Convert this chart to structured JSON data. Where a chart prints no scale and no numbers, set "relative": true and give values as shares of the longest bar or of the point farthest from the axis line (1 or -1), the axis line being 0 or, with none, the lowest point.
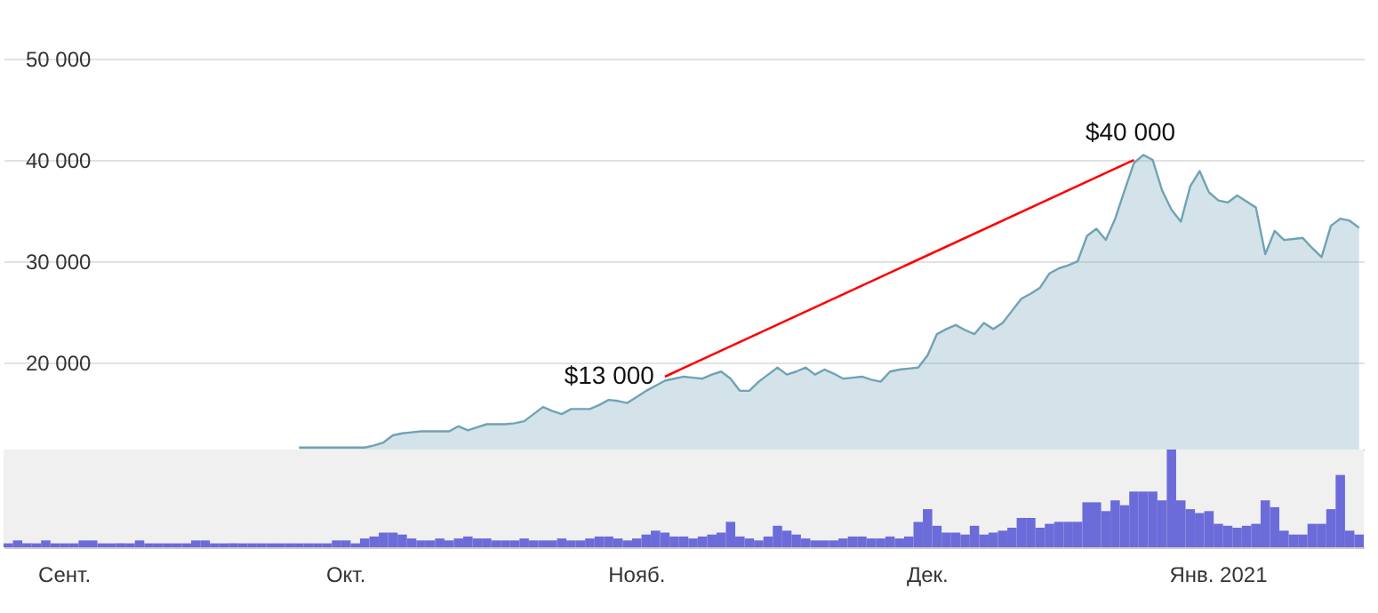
{
  "chart_data": [
    {
      "type": "area",
      "ylim": [
        11400,
        55800
      ],
      "categories": [
        null,
        null,
        null,
        null,
        null,
        null,
        null,
        null,
        null,
        null,
        null,
        null,
        null,
        null,
        null,
        null,
        null,
        null,
        null,
        null,
        null,
        null,
        null,
        null,
        null,
        null,
        null,
        null,
        null,
        null,
        null,
        null,
        null,
        null,
        null,
        null,
        null,
        null,
        null,
        null,
        null,
        null,
        null,
        null,
        null,
        null,
        null,
        null,
        null,
        null,
        null,
        null,
        null,
        null,
        null,
        null,
        null,
        null,
        null,
        null,
        null,
        null,
        null,
        null,
        null,
        null,
        null,
        null,
        null,
        null,
        null,
        null,
        null,
        null,
        null,
        null,
        null,
        null,
        null,
        null,
        null,
        null,
        null,
        null,
        null,
        null,
        null,
        null,
        null,
        null,
        null,
        null,
        null,
        null,
        null,
        null,
        null,
        null,
        null,
        null,
        null,
        null,
        null,
        null,
        null,
        null,
        null,
        null,
        null,
        null,
        null,
        null,
        null,
        null,
        null,
        null,
        null,
        null,
        null,
        null,
        null,
        null,
        null,
        null,
        null,
        null,
        null,
        null,
        null,
        null,
        null,
        null,
        null,
        null,
        null,
        null,
        null,
        null,
        null,
        null,
        null,
        null,
        null,
        null,
        null
      ],
      "yticks": [
        {
          "value": 20000,
          "label": "20 000"
        },
        {
          "value": 30000,
          "label": "30 000"
        },
        {
          "value": 40000,
          "label": "40 000"
        },
        {
          "value": 50000,
          "label": "50 000"
        }
      ],
      "grid": "y",
      "tick_labels": "y",
      "marker": "none",
      "series": [
        {
          "color": "#6fa3b5",
          "values": [
            null,
            null,
            null,
            null,
            null,
            null,
            null,
            null,
            null,
            null,
            null,
            null,
            null,
            null,
            null,
            null,
            null,
            null,
            null,
            null,
            null,
            null,
            null,
            null,
            null,
            null,
            null,
            null,
            null,
            null,
            null,
            11600,
            11600,
            11600,
            11600,
            11600,
            11600,
            11600,
            11600,
            11800,
            12100,
            12800,
            13000,
            13100,
            13200,
            13200,
            13200,
            13200,
            13700,
            13300,
            13600,
            13900,
            13900,
            13900,
            14000,
            14200,
            14900,
            15600,
            15200,
            14900,
            15400,
            15400,
            15400,
            15800,
            16300,
            16200,
            16000,
            16600,
            17200,
            17700,
            18200,
            18400,
            18600,
            18500,
            18400,
            18800,
            19100,
            18400,
            17200,
            17200,
            18100,
            18800,
            19500,
            18800,
            19100,
            19500,
            18800,
            19300,
            18900,
            18400,
            18500,
            18600,
            18300,
            18100,
            19100,
            19300,
            19400,
            19500,
            20700,
            22800,
            23300,
            23700,
            23200,
            22800,
            23900,
            23300,
            23900,
            25100,
            26300,
            26800,
            27400,
            28800,
            29300,
            29600,
            30000,
            32500,
            33200,
            32100,
            34200,
            37000,
            39700,
            40500,
            40000,
            37000,
            35100,
            33900,
            37400,
            38900,
            36800,
            36000,
            35800,
            36500,
            35900,
            35300,
            30700,
            33000,
            32100,
            32200,
            32300,
            31300,
            30400,
            33500,
            34200,
            34000,
            33300
          ]
        },
        {
          "type": "line",
          "color": "#ff0000",
          "values": [
            null,
            null,
            null,
            null,
            null,
            null,
            null,
            null,
            null,
            null,
            null,
            null,
            null,
            null,
            null,
            null,
            null,
            null,
            null,
            null,
            null,
            null,
            null,
            null,
            null,
            null,
            null,
            null,
            null,
            null,
            null,
            null,
            null,
            null,
            null,
            null,
            null,
            null,
            null,
            null,
            null,
            null,
            null,
            null,
            null,
            null,
            null,
            null,
            null,
            null,
            null,
            null,
            null,
            null,
            null,
            null,
            null,
            null,
            null,
            null,
            null,
            null,
            null,
            null,
            null,
            null,
            null,
            null,
            null,
            null,
            18600,
            null,
            null,
            null,
            null,
            null,
            null,
            null,
            null,
            null,
            null,
            null,
            null,
            null,
            null,
            null,
            null,
            null,
            null,
            null,
            null,
            null,
            null,
            null,
            null,
            null,
            null,
            null,
            null,
            null,
            null,
            null,
            null,
            null,
            null,
            null,
            null,
            null,
            null,
            null,
            null,
            null,
            null,
            null,
            null,
            null,
            null,
            null,
            null,
            null,
            40000,
            null,
            null,
            null,
            null,
            null,
            null,
            null,
            null,
            null,
            null,
            null,
            null,
            null,
            null,
            null,
            null,
            null,
            null,
            null,
            null,
            null,
            null,
            null,
            null
          ]
        }
      ],
      "annotations": [
        "$13 000",
        "$40 000"
      ]
    },
    {
      "type": "bar",
      "relative": true,
      "tick_labels": "x",
      "categories": [
        null,
        null,
        null,
        null,
        null,
        null,
        "Сент.",
        null,
        null,
        null,
        null,
        null,
        null,
        null,
        null,
        null,
        null,
        null,
        null,
        null,
        null,
        null,
        null,
        null,
        null,
        null,
        null,
        null,
        null,
        null,
        null,
        null,
        null,
        null,
        null,
        null,
        "Окт.",
        null,
        null,
        null,
        null,
        null,
        null,
        null,
        null,
        null,
        null,
        null,
        null,
        null,
        null,
        null,
        null,
        null,
        null,
        null,
        null,
        null,
        null,
        null,
        null,
        null,
        null,
        null,
        null,
        null,
        null,
        "Нояб.",
        null,
        null,
        null,
        null,
        null,
        null,
        null,
        null,
        null,
        null,
        null,
        null,
        null,
        null,
        null,
        null,
        null,
        null,
        null,
        null,
        null,
        null,
        null,
        null,
        null,
        null,
        null,
        null,
        null,
        null,
        "Дек.",
        null,
        null,
        null,
        null,
        null,
        null,
        null,
        null,
        null,
        null,
        null,
        null,
        null,
        null,
        null,
        null,
        null,
        null,
        null,
        null,
        null,
        null,
        null,
        null,
        null,
        null,
        null,
        null,
        null,
        null,
        "Янв. 2021",
        null,
        null,
        null,
        null,
        null,
        null,
        null,
        null,
        null,
        null,
        null,
        null,
        null,
        null,
        null
      ],
      "series": [
        {
          "color": "#6b6bd9",
          "values": [
            0.04,
            0.07,
            0.04,
            0.04,
            0.07,
            0.04,
            0.04,
            0.04,
            0.07,
            0.07,
            0.04,
            0.04,
            0.04,
            0.04,
            0.07,
            0.04,
            0.04,
            0.04,
            0.04,
            0.04,
            0.07,
            0.07,
            0.04,
            0.04,
            0.04,
            0.04,
            0.04,
            0.04,
            0.04,
            0.04,
            0.04,
            0.04,
            0.04,
            0.04,
            0.04,
            0.07,
            0.07,
            0.04,
            0.09,
            0.11,
            0.15,
            0.15,
            0.13,
            0.09,
            0.07,
            0.07,
            0.09,
            0.07,
            0.09,
            0.11,
            0.09,
            0.09,
            0.07,
            0.07,
            0.07,
            0.09,
            0.07,
            0.07,
            0.07,
            0.09,
            0.07,
            0.07,
            0.09,
            0.11,
            0.11,
            0.09,
            0.07,
            0.09,
            0.13,
            0.17,
            0.15,
            0.11,
            0.11,
            0.09,
            0.11,
            0.13,
            0.15,
            0.26,
            0.11,
            0.09,
            0.07,
            0.11,
            0.22,
            0.17,
            0.13,
            0.09,
            0.07,
            0.07,
            0.07,
            0.09,
            0.11,
            0.11,
            0.09,
            0.09,
            0.11,
            0.09,
            0.11,
            0.26,
            0.39,
            0.22,
            0.15,
            0.15,
            0.13,
            0.22,
            0.13,
            0.15,
            0.17,
            0.2,
            0.3,
            0.3,
            0.2,
            0.24,
            0.26,
            0.26,
            0.26,
            0.46,
            0.46,
            0.37,
            0.48,
            0.43,
            0.57,
            0.57,
            0.57,
            0.48,
            1,
            0.48,
            0.39,
            0.35,
            0.37,
            0.24,
            0.22,
            0.2,
            0.22,
            0.24,
            0.48,
            0.41,
            0.17,
            0.13,
            0.13,
            0.24,
            0.24,
            0.39,
            0.74,
            0.17,
            0.13
          ]
        }
      ]
    }
  ]
}
